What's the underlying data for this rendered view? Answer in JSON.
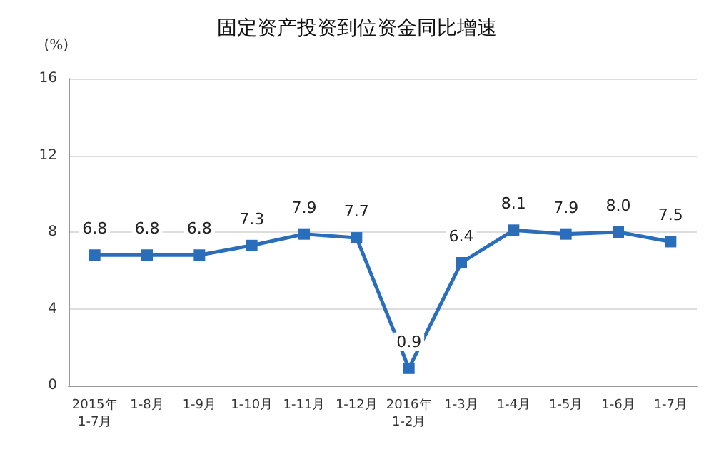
{
  "chart_data": {
    "type": "line",
    "title": "固定资产投资到位资金同比增速",
    "ylabel": "(%)",
    "categories": [
      "2015年\n1-7月",
      "1-8月",
      "1-9月",
      "1-10月",
      "1-11月",
      "1-12月",
      "2016年\n1-2月",
      "1-3月",
      "1-4月",
      "1-5月",
      "1-6月",
      "1-7月"
    ],
    "series": [
      {
        "color": "#2a6ebb",
        "values": [
          6.8,
          6.8,
          6.8,
          7.3,
          7.9,
          7.7,
          0.9,
          6.4,
          8.1,
          7.9,
          8.0,
          7.5
        ],
        "value_labels": [
          "6.8",
          "6.8",
          "6.8",
          "7.3",
          "7.9",
          "7.7",
          "0.9",
          "6.4",
          "8.1",
          "7.9",
          "8.0",
          "7.5"
        ]
      }
    ],
    "ylim": [
      0,
      16
    ],
    "yticks": [
      0,
      4,
      8,
      12,
      16
    ],
    "grid": "y",
    "marker": "square",
    "line_style": "solid"
  }
}
